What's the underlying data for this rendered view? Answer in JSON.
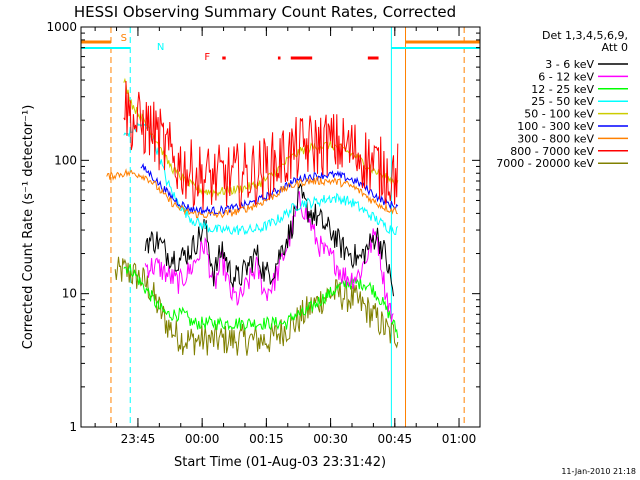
{
  "chart_data": {
    "type": "line",
    "title": "HESSI Observing Summary Count Rates, Corrected",
    "xlabel": "Start Time (01-Aug-03 23:31:42)",
    "ylabel": "Corrected Count Rate (s⁻¹ detector⁻¹)",
    "yscale": "log",
    "ylim": [
      1,
      1000
    ],
    "xlim_minutes_after_start": [
      0,
      93.2
    ],
    "x_tick_labels": [
      "23:45",
      "00:00",
      "00:15",
      "00:30",
      "00:45",
      "01:00"
    ],
    "x_tick_minutes_after_start": [
      13.3,
      28.3,
      43.3,
      58.3,
      73.3,
      88.3
    ],
    "y_tick_labels": [
      "1",
      "10",
      "100",
      "1000"
    ],
    "y_tick_values": [
      1,
      10,
      100,
      1000
    ],
    "grid": false,
    "legend_position": "right",
    "detector_label": "Det 1,3,4,5,6,9,",
    "attenuator_label": "Att 0",
    "footer_date": "11-Jan-2010 21:18",
    "flags": [
      {
        "label": "S",
        "color": "#ff8000"
      },
      {
        "label": "N",
        "color": "#00ffff"
      },
      {
        "label": "F",
        "color": "#ff0000"
      }
    ],
    "series": [
      {
        "name": "3 - 6 keV",
        "color": "#000000",
        "x": [
          15,
          18,
          20,
          23,
          26,
          29,
          31,
          33,
          35,
          37,
          39,
          41,
          43,
          45,
          47,
          49,
          51,
          53,
          55,
          57,
          59,
          61,
          63,
          65,
          67,
          69,
          71,
          73
        ],
        "y": [
          25,
          25,
          20,
          18,
          22,
          32,
          14,
          22,
          14,
          13,
          16,
          20,
          14,
          15,
          22,
          30,
          55,
          42,
          38,
          32,
          28,
          22,
          20,
          18,
          22,
          28,
          20,
          10
        ]
      },
      {
        "name": "6 - 12 keV",
        "color": "#ff00ff",
        "x": [
          15,
          18,
          20,
          23,
          26,
          29,
          31,
          33,
          35,
          37,
          39,
          41,
          43,
          45,
          47,
          49,
          51,
          53,
          55,
          57,
          59,
          61,
          63,
          65,
          67,
          69,
          71,
          73
        ],
        "y": [
          16,
          16,
          14,
          12,
          16,
          24,
          11,
          18,
          10,
          9,
          12,
          16,
          10,
          12,
          18,
          28,
          50,
          38,
          25,
          20,
          18,
          14,
          13,
          14,
          20,
          30,
          11,
          6
        ]
      },
      {
        "name": "12 - 25 keV",
        "color": "#00ff00",
        "x": [
          10,
          12,
          14,
          16,
          18,
          20,
          22,
          24,
          26,
          28,
          30,
          32,
          34,
          36,
          38,
          40,
          42,
          44,
          46,
          48,
          50,
          52,
          54,
          56,
          58,
          60,
          62,
          64,
          66,
          68,
          70,
          72,
          74
        ],
        "y": [
          16,
          15,
          12,
          10,
          8,
          7,
          7,
          7,
          6,
          6,
          6,
          6,
          6,
          6,
          6,
          6,
          6,
          6,
          6,
          6,
          7,
          7,
          8,
          9,
          10,
          11,
          12,
          12,
          12,
          11,
          9,
          7,
          5
        ]
      },
      {
        "name": "25 - 50 keV",
        "color": "#00ffff",
        "x": [
          10,
          12,
          14,
          16,
          18,
          20,
          22,
          24,
          26,
          28,
          30,
          32,
          34,
          36,
          38,
          40,
          42,
          44,
          46,
          48,
          50,
          52,
          54,
          56,
          58,
          60,
          62,
          64,
          66,
          68,
          70,
          72,
          74
        ],
        "y": [
          150,
          170,
          185,
          170,
          115,
          70,
          52,
          42,
          36,
          33,
          31,
          30,
          30,
          30,
          30,
          30,
          31,
          33,
          36,
          40,
          45,
          48,
          48,
          50,
          52,
          52,
          50,
          47,
          42,
          38,
          34,
          31,
          30
        ]
      },
      {
        "name": "50 - 100 keV",
        "color": "#cccc00",
        "x": [
          10,
          12,
          14,
          16,
          18,
          20,
          22,
          24,
          26,
          28,
          30,
          32,
          34,
          36,
          38,
          40,
          42,
          44,
          46,
          48,
          50,
          52,
          54,
          56,
          58,
          60,
          62,
          64,
          66,
          68,
          70,
          72,
          74
        ],
        "y": [
          400,
          260,
          210,
          175,
          135,
          100,
          82,
          72,
          64,
          60,
          58,
          58,
          59,
          60,
          62,
          64,
          68,
          75,
          85,
          98,
          110,
          120,
          125,
          128,
          130,
          125,
          118,
          108,
          96,
          86,
          78,
          72,
          68
        ]
      },
      {
        "name": "100 - 300 keV",
        "color": "#0000ff",
        "x": [
          14,
          16,
          18,
          20,
          22,
          24,
          26,
          28,
          30,
          32,
          34,
          36,
          38,
          40,
          42,
          44,
          46,
          48,
          50,
          52,
          54,
          56,
          58,
          60,
          62,
          64,
          66,
          68,
          70,
          72,
          74
        ],
        "y": [
          90,
          80,
          68,
          58,
          50,
          46,
          43,
          42,
          42,
          42,
          43,
          44,
          46,
          48,
          51,
          55,
          60,
          65,
          70,
          74,
          76,
          77,
          78,
          77,
          74,
          70,
          64,
          57,
          51,
          47,
          45
        ]
      },
      {
        "name": "300 - 800 keV",
        "color": "#ff8000",
        "x": [
          6,
          8,
          10,
          12,
          14,
          16,
          18,
          20,
          22,
          24,
          26,
          28,
          30,
          32,
          34,
          36,
          38,
          40,
          42,
          44,
          46,
          48,
          50,
          52,
          54,
          56,
          58,
          60,
          62,
          64,
          66,
          68,
          70,
          72,
          74
        ],
        "y": [
          75,
          78,
          80,
          80,
          78,
          72,
          62,
          52,
          46,
          42,
          40,
          39,
          39,
          39,
          40,
          41,
          43,
          45,
          48,
          52,
          57,
          62,
          66,
          69,
          70,
          70,
          70,
          69,
          66,
          62,
          56,
          50,
          46,
          43,
          42
        ]
      },
      {
        "name": "800 - 7000 keV",
        "color": "#ff0000",
        "x": [
          10,
          12,
          14,
          16,
          18,
          20,
          22,
          24,
          26,
          28,
          30,
          32,
          34,
          36,
          38,
          40,
          42,
          44,
          46,
          48,
          50,
          52,
          54,
          56,
          58,
          60,
          62,
          64,
          66,
          68,
          70,
          72,
          74
        ],
        "y": [
          280,
          195,
          185,
          175,
          150,
          118,
          98,
          88,
          80,
          76,
          74,
          74,
          75,
          76,
          78,
          80,
          84,
          90,
          98,
          108,
          118,
          126,
          130,
          133,
          134,
          130,
          124,
          116,
          105,
          95,
          86,
          80,
          78
        ]
      },
      {
        "name": "7000 - 20000 keV",
        "color": "#808000",
        "x": [
          8,
          10,
          12,
          14,
          16,
          18,
          20,
          22,
          24,
          26,
          28,
          30,
          32,
          34,
          36,
          38,
          40,
          42,
          44,
          46,
          48,
          50,
          52,
          54,
          56,
          58,
          60,
          62,
          64,
          66,
          68,
          70,
          72,
          74
        ],
        "y": [
          14,
          15,
          14,
          13,
          11,
          8,
          6,
          5,
          4.5,
          4.5,
          4.5,
          4.5,
          4.5,
          4.5,
          4.5,
          4.5,
          4.5,
          4.5,
          4.5,
          5,
          5.5,
          6,
          7,
          8,
          9,
          10,
          10,
          9.5,
          9,
          8,
          7,
          6,
          5,
          5
        ]
      }
    ]
  }
}
